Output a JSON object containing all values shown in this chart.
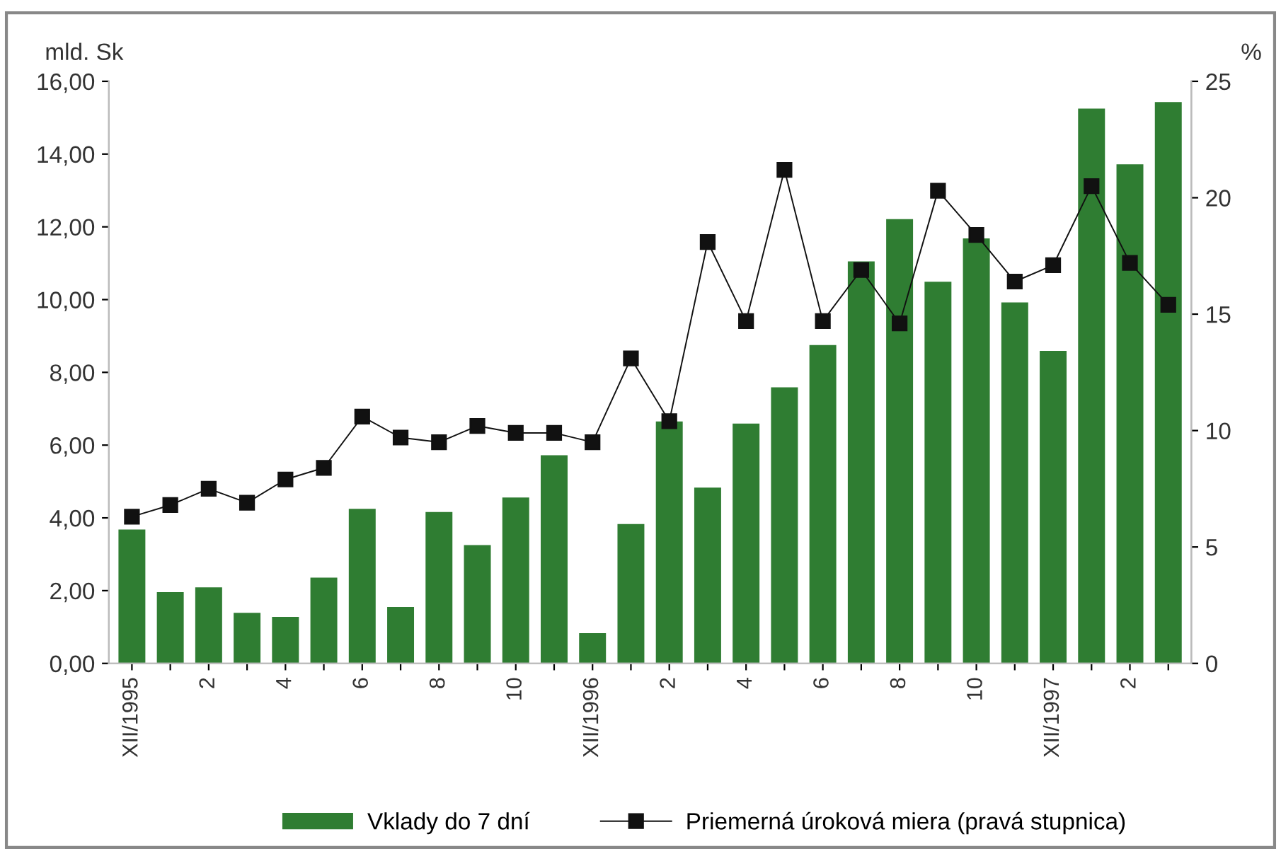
{
  "chart_data": {
    "type": "bar",
    "ylabel": "mld. Sk",
    "y2label": "%",
    "categories": [
      "XII/1995",
      null,
      "2",
      null,
      "4",
      null,
      "6",
      null,
      "8",
      null,
      "10",
      null,
      "XII/1996",
      null,
      "2",
      null,
      "4",
      null,
      "6",
      null,
      "8",
      null,
      "10",
      null,
      "XII/1997",
      null,
      "2",
      null
    ],
    "series": [
      {
        "name": "Vklady do 7 dní",
        "color": "#2f7d32",
        "values": [
          3.68,
          1.96,
          2.09,
          1.39,
          1.28,
          2.36,
          4.25,
          1.55,
          4.16,
          3.25,
          4.56,
          5.72,
          0.83,
          3.83,
          6.65,
          4.83,
          6.59,
          7.59,
          8.75,
          11.05,
          12.21,
          10.49,
          11.68,
          9.92,
          8.59,
          15.25,
          13.72,
          15.43
        ]
      },
      {
        "name": "Priemerná úroková miera (pravá stupnica)",
        "type": "line",
        "axis": "y2",
        "color": "#111111",
        "marker": "square",
        "values": [
          6.3,
          6.8,
          7.5,
          6.9,
          7.9,
          8.4,
          10.6,
          9.7,
          9.5,
          10.2,
          9.9,
          9.9,
          9.5,
          13.1,
          10.4,
          18.1,
          14.7,
          21.2,
          14.7,
          16.9,
          14.6,
          20.3,
          18.4,
          16.4,
          17.1,
          20.5,
          17.2,
          15.4
        ]
      }
    ],
    "ylim": [
      0,
      16
    ],
    "yticks": [
      {
        "value": 0,
        "label": "0,00"
      },
      {
        "value": 2,
        "label": "2,00"
      },
      {
        "value": 4,
        "label": "4,00"
      },
      {
        "value": 6,
        "label": "6,00"
      },
      {
        "value": 8,
        "label": "8,00"
      },
      {
        "value": 10,
        "label": "10,00"
      },
      {
        "value": 12,
        "label": "12,00"
      },
      {
        "value": 14,
        "label": "14,00"
      },
      {
        "value": 16,
        "label": "16,00"
      }
    ],
    "y2lim": [
      0,
      25
    ],
    "y2ticks": [
      0,
      5,
      10,
      15,
      20,
      25
    ],
    "grid": false,
    "legend": "bottom"
  }
}
